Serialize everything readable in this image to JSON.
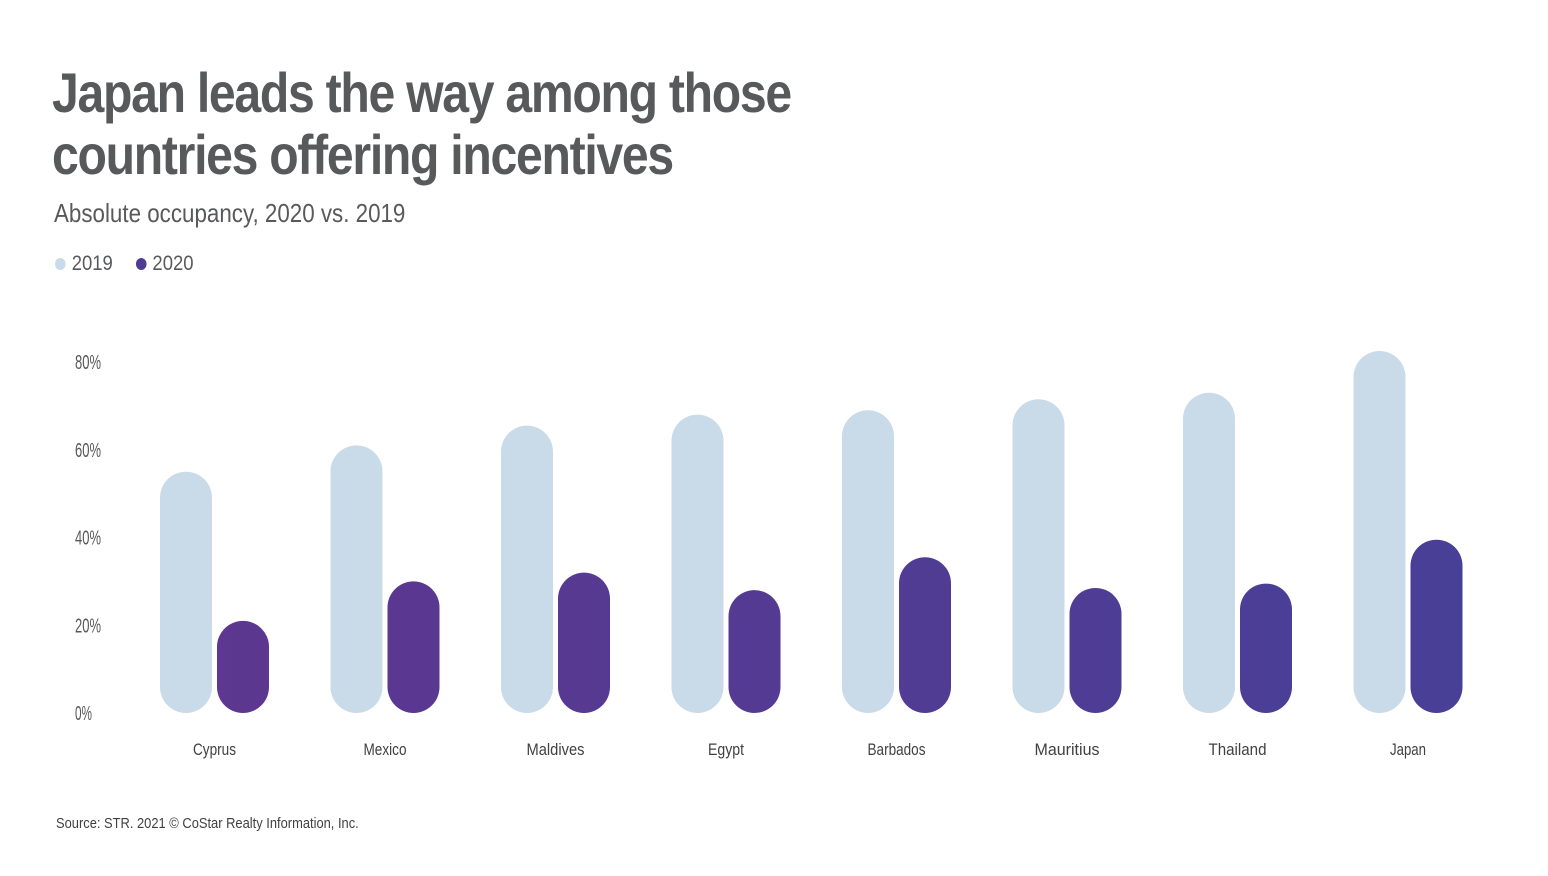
{
  "title_line1": "Japan leads the way among those",
  "title_line2": "countries offering incentives",
  "subtitle": "Absolute occupancy, 2020 vs. 2019",
  "source": "Source: STR. 2021 © CoStar Realty Information, Inc.",
  "colors": {
    "series_2019": "#c9dbe8",
    "series_2020_start": "#5d3790",
    "series_2020_end": "#483f97",
    "text": "#58595b"
  },
  "chart_data": {
    "type": "bar",
    "title": "Japan leads the way among those countries offering incentives",
    "subtitle": "Absolute occupancy, 2020 vs. 2019",
    "categories": [
      "Cyprus",
      "Mexico",
      "Maldives",
      "Egypt",
      "Barbados",
      "Mauritius",
      "Thailand",
      "Japan"
    ],
    "series": [
      {
        "name": "2019",
        "values": [
          55,
          61,
          65.5,
          68,
          69,
          71.5,
          73,
          82.5
        ]
      },
      {
        "name": "2020",
        "values": [
          21,
          30,
          32,
          28,
          35.5,
          28.5,
          29.5,
          39.5
        ]
      }
    ],
    "y_ticks": [
      "0%",
      "20%",
      "40%",
      "60%",
      "80%"
    ],
    "ylim": [
      0,
      80
    ],
    "xlabel": "",
    "ylabel": "",
    "grid": false,
    "legend_position": "top-left"
  }
}
